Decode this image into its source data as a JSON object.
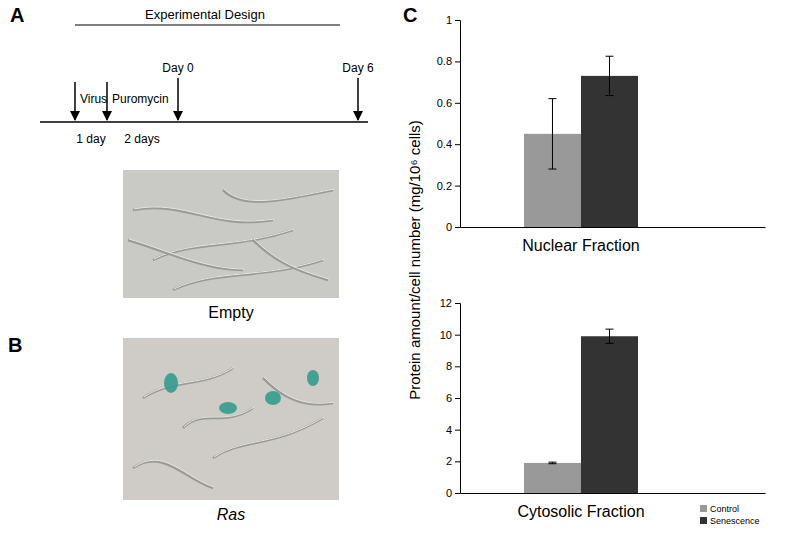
{
  "panel_a": {
    "label": "A",
    "title": "Experimental Design",
    "events": [
      {
        "label": "Virus"
      },
      {
        "label": "Puromycin"
      },
      {
        "label": "Day 0"
      },
      {
        "label": "Day 6"
      }
    ],
    "intervals": [
      "1 day",
      "2 days"
    ]
  },
  "panel_b": {
    "label": "B",
    "images": [
      {
        "caption": "Empty"
      },
      {
        "caption": "Ras"
      }
    ]
  },
  "panel_c": {
    "label": "C"
  },
  "chart_data": [
    {
      "type": "bar",
      "y_label": "Protein amount/cell number (mg/10⁶ cells)",
      "categories": [
        "Nuclear Fraction"
      ],
      "series": [
        {
          "color": "#999999",
          "values": [
            0.45
          ],
          "errors": [
            0.17
          ]
        },
        {
          "color": "#333333",
          "values": [
            0.73
          ],
          "errors": [
            0.095
          ]
        }
      ],
      "ylim": [
        0,
        1
      ],
      "yticks": [
        0,
        0.2,
        0.4,
        0.6,
        0.8,
        1
      ]
    },
    {
      "type": "bar",
      "categories": [
        "Cytosolic Fraction"
      ],
      "series": [
        {
          "name": "Control",
          "color": "#999999",
          "values": [
            1.9
          ],
          "errors": [
            0.05
          ]
        },
        {
          "name": "Senescence",
          "color": "#333333",
          "values": [
            9.9
          ],
          "errors": [
            0.45
          ]
        }
      ],
      "ylim": [
        0,
        12
      ],
      "yticks": [
        0,
        2,
        4,
        6,
        8,
        10,
        12
      ],
      "legend": "bottom-right"
    }
  ]
}
